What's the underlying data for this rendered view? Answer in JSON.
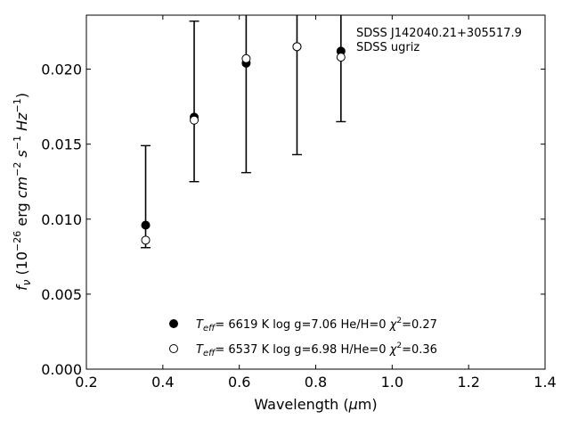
{
  "chart_data": {
    "type": "scatter",
    "xlim": [
      0.2,
      1.4
    ],
    "ylim": [
      0.0,
      0.0236
    ],
    "xticks": [
      "0.2",
      "0.4",
      "0.6",
      "0.8",
      "1.0",
      "1.2",
      "1.4"
    ],
    "yticks": [
      "0.000",
      "0.005",
      "0.010",
      "0.015",
      "0.020"
    ],
    "xlabel": "Wavelength (μm)",
    "ylabel": "f_ν (10^-26 erg cm^-2 s^-1 Hz^-1)",
    "annotation": [
      "SDSS J142040.21+305517.9",
      "SDSS ugriz"
    ],
    "observed": {
      "x": [
        0.355,
        0.482,
        0.618,
        0.751,
        0.866
      ],
      "y": [
        0.0096,
        0.0168,
        0.0204,
        0.0215,
        0.0212
      ],
      "err_low": [
        0.0081,
        0.0125,
        0.0131,
        0.0143,
        0.0165
      ],
      "err_high": [
        0.0149,
        0.0232,
        0.0236,
        0.0236,
        0.0236
      ]
    },
    "series": [
      {
        "name": "T_eff= 6619 K log g=7.06 He/H=0 χ²=0.27",
        "marker": "filled-circle",
        "x": [
          0.355,
          0.482,
          0.618,
          0.751,
          0.866
        ],
        "y": [
          0.0096,
          0.0168,
          0.0204,
          0.0215,
          0.0212
        ]
      },
      {
        "name": "T_eff= 6537 K log g=6.98 H/He=0 χ²=0.36",
        "marker": "open-circle",
        "x": [
          0.355,
          0.482,
          0.618,
          0.751,
          0.866
        ],
        "y": [
          0.0086,
          0.0166,
          0.0207,
          0.0215,
          0.0208
        ]
      }
    ],
    "legend": [
      {
        "teff": "6619 K",
        "logg": "log g=7.06",
        "comp": "He/H=0",
        "chi": "=0.27"
      },
      {
        "teff": "6537 K",
        "logg": "log g=6.98",
        "comp": "H/He=0",
        "chi": "=0.36"
      }
    ],
    "legend_placement": "lower-center",
    "grid": false
  }
}
